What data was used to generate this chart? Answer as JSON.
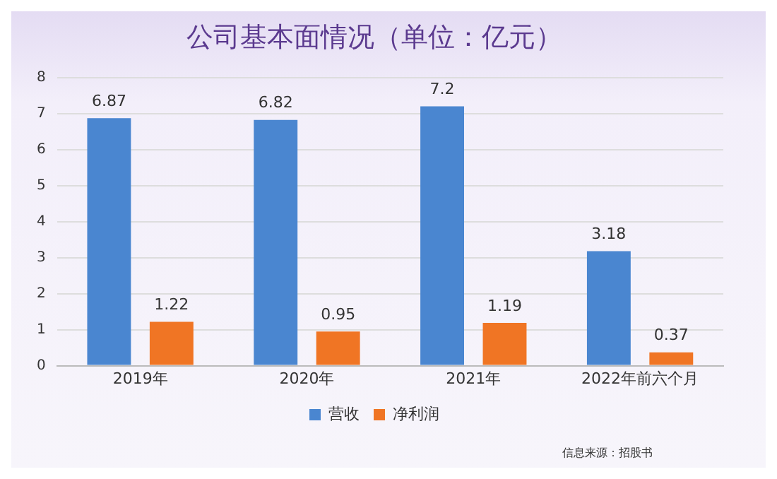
{
  "chart_data": {
    "type": "bar",
    "title": "公司基本面情况（单位：亿元）",
    "categories": [
      "2019年",
      "2020年",
      "2021年",
      "2022年前六个月"
    ],
    "series": [
      {
        "name": "营收",
        "color": "#4a86d0",
        "values": [
          6.87,
          6.82,
          7.2,
          3.18
        ]
      },
      {
        "name": "净利润",
        "color": "#f07524",
        "values": [
          1.22,
          0.95,
          1.19,
          0.37
        ]
      }
    ],
    "ylim": [
      0,
      8
    ],
    "yticks": [
      0,
      1,
      2,
      3,
      4,
      5,
      6,
      7,
      8
    ],
    "grid": "y",
    "legend": "bottom",
    "data_labels": true,
    "annotations": [
      "信息来源：招股书"
    ]
  }
}
